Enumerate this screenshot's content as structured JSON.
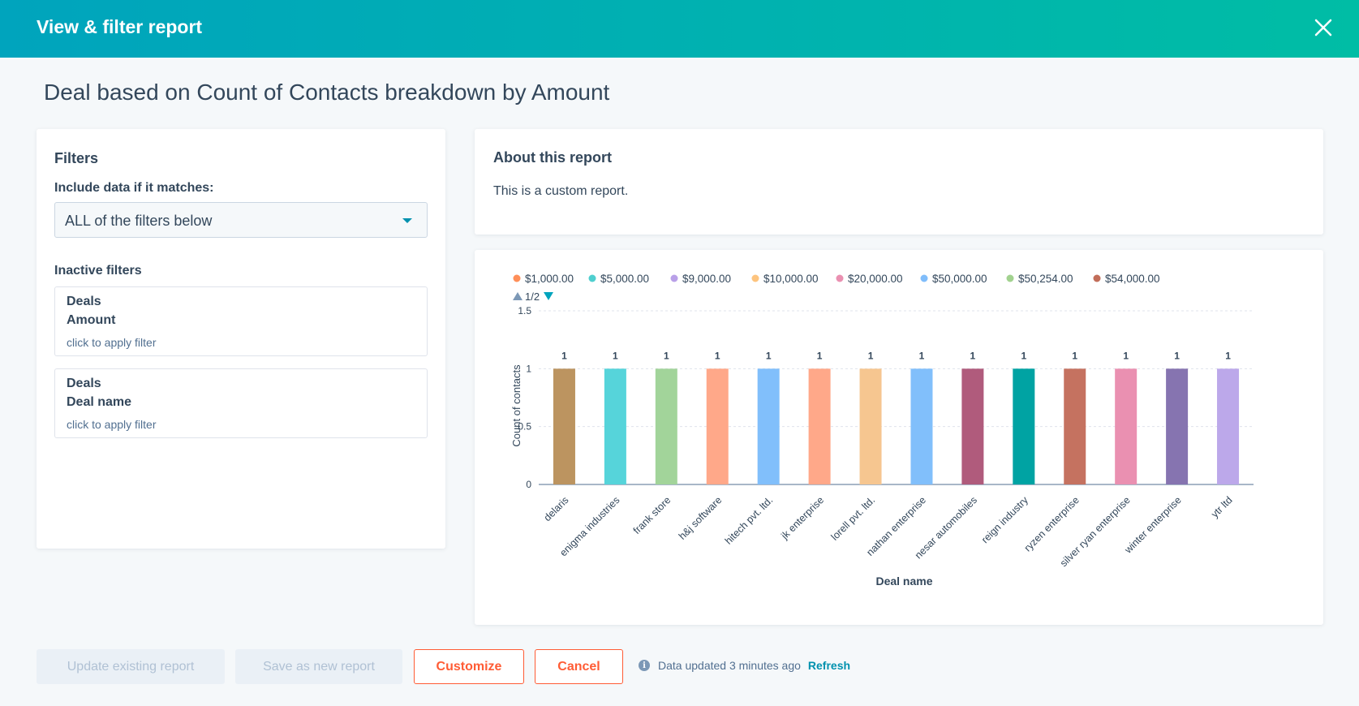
{
  "header": {
    "title": "View & filter report",
    "close_icon": "close-icon"
  },
  "page_title": "Deal based on Count of Contacts breakdown by Amount",
  "filters": {
    "heading": "Filters",
    "include_label": "Include data if it matches:",
    "match_value": "ALL of the filters below",
    "inactive_label": "Inactive filters",
    "items": [
      {
        "object": "Deals",
        "property": "Amount",
        "hint": "click to apply filter"
      },
      {
        "object": "Deals",
        "property": "Deal name",
        "hint": "click to apply filter"
      }
    ]
  },
  "about": {
    "heading": "About this report",
    "text": "This is a custom report."
  },
  "chart_data": {
    "type": "bar",
    "xlabel": "Deal name",
    "ylabel": "Count of contacts",
    "ylim": [
      0,
      1.5
    ],
    "yticks": [
      "0",
      "0.5",
      "1",
      "1.5"
    ],
    "legend_page": "1/2",
    "legend": [
      {
        "name": "$1,000.00",
        "color": "#ff8f59"
      },
      {
        "name": "$5,000.00",
        "color": "#4fcfcf"
      },
      {
        "name": "$9,000.00",
        "color": "#b9a0e8"
      },
      {
        "name": "$10,000.00",
        "color": "#fdc47e"
      },
      {
        "name": "$20,000.00",
        "color": "#ea90b1"
      },
      {
        "name": "$50,000.00",
        "color": "#80bdfb"
      },
      {
        "name": "$50,254.00",
        "color": "#a2d28f"
      },
      {
        "name": "$54,000.00",
        "color": "#c26d59"
      }
    ],
    "categories": [
      "delaris",
      "enigma industries",
      "frank store",
      "h&j software",
      "hitech pvt. ltd.",
      "jk enterprise",
      "lorell pvt. ltd.",
      "nathan enterprise",
      "nesar automobiles",
      "reign industry",
      "ryzen enterprise",
      "silver ryan enterprise",
      "winter enterprise",
      "ytr ltd"
    ],
    "values": [
      1,
      1,
      1,
      1,
      1,
      1,
      1,
      1,
      1,
      1,
      1,
      1,
      1,
      1
    ],
    "data_labels": [
      "1",
      "1",
      "1",
      "1",
      "1",
      "1",
      "1",
      "1",
      "1",
      "1",
      "1",
      "1",
      "1",
      "1"
    ],
    "bar_colors": [
      "#bc9460",
      "#56d4da",
      "#a2d49a",
      "#ffa889",
      "#81bffb",
      "#ffa889",
      "#f6c690",
      "#81bffb",
      "#b05b7c",
      "#00a3a3",
      "#c57260",
      "#ea90b1",
      "#8674b0",
      "#bca8ea"
    ]
  },
  "footer": {
    "update_label": "Update existing report",
    "save_new_label": "Save as new report",
    "customize_label": "Customize",
    "cancel_label": "Cancel",
    "status_text": "Data updated 3 minutes ago",
    "refresh_label": "Refresh"
  }
}
